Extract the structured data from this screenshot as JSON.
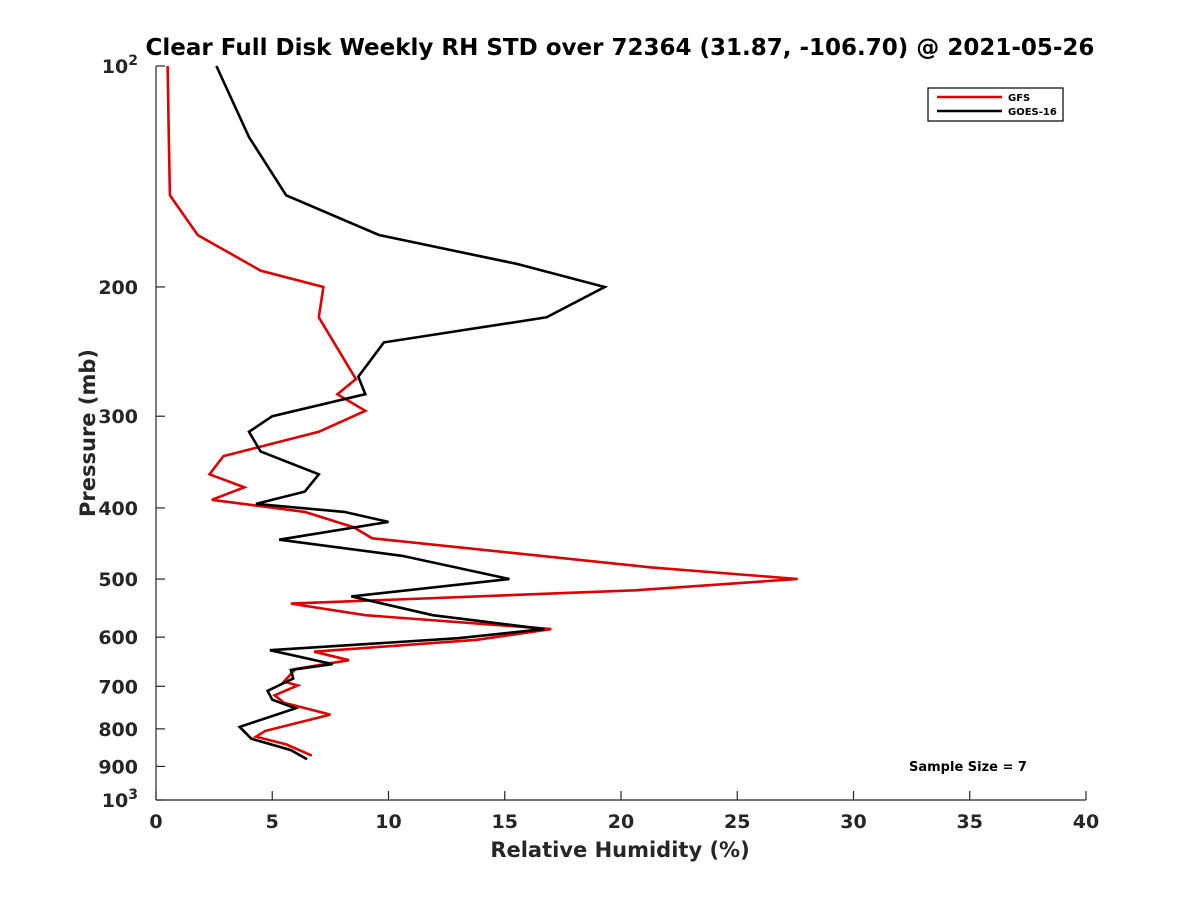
{
  "chart_data": {
    "type": "line",
    "title": "Clear Full Disk Weekly RH STD over 72364 (31.87, -106.70) @ 2021-05-26",
    "xlabel": "Relative Humidity (%)",
    "ylabel": "Pressure (mb)",
    "xlim": [
      0,
      40
    ],
    "ylim": [
      100,
      1000
    ],
    "y_scale": "log",
    "y_reversed": true,
    "x_ticks": [
      "0",
      "5",
      "10",
      "15",
      "20",
      "25",
      "30",
      "35",
      "40"
    ],
    "y_ticks": [
      {
        "value": 100,
        "label": "10",
        "sup": "2"
      },
      {
        "value": 200,
        "label": "200",
        "sup": ""
      },
      {
        "value": 300,
        "label": "300",
        "sup": ""
      },
      {
        "value": 400,
        "label": "400",
        "sup": ""
      },
      {
        "value": 500,
        "label": "500",
        "sup": ""
      },
      {
        "value": 600,
        "label": "600",
        "sup": ""
      },
      {
        "value": 700,
        "label": "700",
        "sup": ""
      },
      {
        "value": 800,
        "label": "800",
        "sup": ""
      },
      {
        "value": 900,
        "label": "900",
        "sup": ""
      },
      {
        "value": 1000,
        "label": "10",
        "sup": "3"
      }
    ],
    "grid": false,
    "legend_position": "top-right",
    "annotation": "Sample Size = 7",
    "series": [
      {
        "name": "GFS",
        "color": "#e00000",
        "points": [
          [
            0.5,
            100
          ],
          [
            0.55,
            125
          ],
          [
            0.6,
            150
          ],
          [
            1.8,
            170
          ],
          [
            4.5,
            190
          ],
          [
            7.2,
            200
          ],
          [
            7.0,
            220
          ],
          [
            8.6,
            267
          ],
          [
            7.8,
            280
          ],
          [
            9.0,
            295
          ],
          [
            7.0,
            315
          ],
          [
            2.9,
            340
          ],
          [
            2.3,
            360
          ],
          [
            3.8,
            375
          ],
          [
            2.4,
            390
          ],
          [
            6.4,
            405
          ],
          [
            8.5,
            425
          ],
          [
            9.3,
            440
          ],
          [
            21.3,
            482
          ],
          [
            27.6,
            500
          ],
          [
            20.6,
            518
          ],
          [
            5.8,
            540
          ],
          [
            9.0,
            560
          ],
          [
            17.0,
            585
          ],
          [
            13.8,
            605
          ],
          [
            6.8,
            628
          ],
          [
            8.3,
            645
          ],
          [
            6.0,
            663
          ],
          [
            5.5,
            690
          ],
          [
            6.1,
            698
          ],
          [
            5.1,
            720
          ],
          [
            5.5,
            737
          ],
          [
            7.5,
            765
          ],
          [
            4.7,
            805
          ],
          [
            4.3,
            820
          ],
          [
            5.6,
            840
          ],
          [
            6.7,
            870
          ]
        ]
      },
      {
        "name": "GOES-16",
        "color": "#000000",
        "points": [
          [
            2.6,
            100
          ],
          [
            4.0,
            125
          ],
          [
            5.6,
            150
          ],
          [
            9.6,
            170
          ],
          [
            15.5,
            186
          ],
          [
            19.3,
            200
          ],
          [
            16.8,
            220
          ],
          [
            9.8,
            238
          ],
          [
            8.7,
            265
          ],
          [
            9.0,
            280
          ],
          [
            5.0,
            300
          ],
          [
            4.0,
            315
          ],
          [
            4.5,
            335
          ],
          [
            7.0,
            360
          ],
          [
            6.4,
            380
          ],
          [
            4.3,
            395
          ],
          [
            8.1,
            405
          ],
          [
            10.0,
            418
          ],
          [
            5.3,
            442
          ],
          [
            10.6,
            465
          ],
          [
            15.2,
            500
          ],
          [
            8.4,
            528
          ],
          [
            11.9,
            560
          ],
          [
            16.7,
            585
          ],
          [
            13.0,
            602
          ],
          [
            4.9,
            625
          ],
          [
            7.6,
            653
          ],
          [
            5.8,
            665
          ],
          [
            5.9,
            683
          ],
          [
            4.8,
            710
          ],
          [
            5.0,
            730
          ],
          [
            6.0,
            750
          ],
          [
            3.6,
            795
          ],
          [
            4.1,
            825
          ],
          [
            5.8,
            855
          ],
          [
            6.5,
            880
          ]
        ]
      }
    ]
  }
}
